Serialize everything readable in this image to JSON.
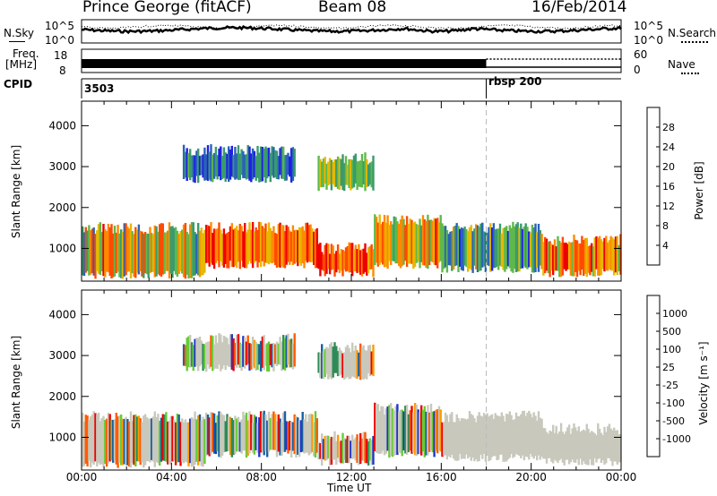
{
  "header": {
    "station": "Prince George (fitACF)",
    "beam": "Beam 08",
    "date": "16/Feb/2014"
  },
  "strip": {
    "nsky_label": "N.Sky",
    "nsky_tick_top": "10^5",
    "nsky_tick_bottom": "10^0",
    "nsearch_label": "N.Search",
    "nsearch_tick_top": "10^5",
    "nsearch_tick_bottom": "10^0",
    "freq_label_line1": "Freq.",
    "freq_label_line2": "[MHz]",
    "freq_tick_top": "18",
    "freq_tick_bottom": "8",
    "nave_label": "Nave",
    "nave_tick_top": "60",
    "nave_tick_bottom": "0",
    "cpid_label": "CPID",
    "cpid_value_1": "3503",
    "cpid_value_2": "rbsp 200"
  },
  "colors": {
    "power": [
      "#1f1fe6",
      "#2a62b8",
      "#3a9a6e",
      "#5fb84a",
      "#e6b800",
      "#ff8a00",
      "#ff4a00",
      "#ee0000"
    ],
    "velocity": [
      "#ee0000",
      "#ff5a00",
      "#ff9a00",
      "#c8c8bc",
      "#c8c8bc",
      "#66cc33",
      "#2e8b57",
      "#1a5fa0",
      "#1f35c8"
    ],
    "ground_scatter": "#c8c8bc"
  },
  "chart_data": [
    {
      "type": "heatmap",
      "name": "power",
      "ylabel": "Slant Range [km]",
      "yticks": [
        "1000",
        "2000",
        "3000",
        "4000"
      ],
      "ylim": [
        200,
        4600
      ],
      "colorbar_label": "Power [dB]",
      "colorbar_ticks": [
        "4",
        "8",
        "12",
        "16",
        "20",
        "24",
        "28"
      ],
      "xlim_hours": [
        0,
        24
      ],
      "xticks": [
        "00:00",
        "04:00",
        "08:00",
        "12:00",
        "16:00",
        "20:00",
        "00:00"
      ],
      "marker_time_hours": 18
    },
    {
      "type": "heatmap",
      "name": "velocity",
      "ylabel": "Slant Range [km]",
      "yticks": [
        "1000",
        "2000",
        "3000",
        "4000"
      ],
      "ylim": [
        200,
        4600
      ],
      "colorbar_label": "Velocity [m s⁻¹]",
      "colorbar_ticks": [
        "-1000",
        "-500",
        "-100",
        "-25",
        "25",
        "100",
        "500",
        "1000"
      ],
      "xlim_hours": [
        0,
        24
      ],
      "xticks": [
        "00:00",
        "04:00",
        "08:00",
        "12:00",
        "16:00",
        "20:00",
        "00:00"
      ],
      "xlabel": "Time UT",
      "marker_time_hours": 18
    }
  ]
}
